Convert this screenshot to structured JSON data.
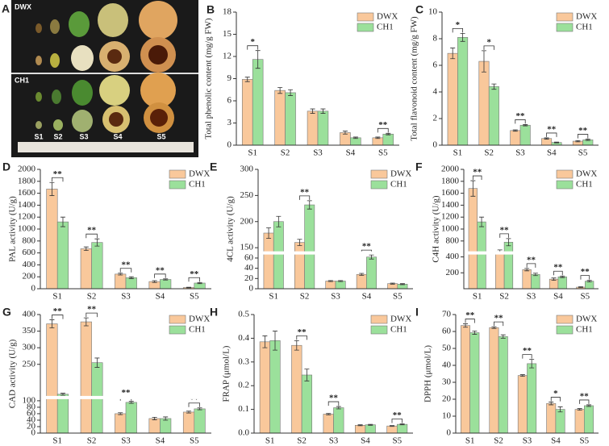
{
  "panel_a": {
    "label": "A",
    "rows": [
      "DWX",
      "CH1"
    ],
    "stages": [
      "S1",
      "S2",
      "S3",
      "S4",
      "S5"
    ]
  },
  "chart_data": [
    {
      "type": "bar",
      "panel": "B",
      "ylabel": "Total phenolic content (mg/g FW)",
      "categories": [
        "S1",
        "S2",
        "S3",
        "S4",
        "S5"
      ],
      "series": [
        {
          "name": "DWX",
          "color": "#f9c89b",
          "values": [
            8.9,
            7.4,
            4.6,
            1.7,
            1.0
          ],
          "errors": [
            0.3,
            0.4,
            0.3,
            0.2,
            0.1
          ]
        },
        {
          "name": "CH1",
          "color": "#9be09b",
          "values": [
            11.6,
            7.1,
            4.6,
            1.0,
            1.5
          ],
          "errors": [
            1.2,
            0.4,
            0.3,
            0.1,
            0.1
          ]
        }
      ],
      "annotations": [
        "*",
        null,
        null,
        null,
        "**"
      ],
      "ylim": [
        0,
        18
      ],
      "yticks": [
        0,
        3,
        6,
        9,
        12,
        15,
        18
      ],
      "legend": "upper right"
    },
    {
      "type": "bar",
      "panel": "C",
      "ylabel": "Total flavonoid content (mg/g FW)",
      "categories": [
        "S1",
        "S2",
        "S3",
        "S4",
        "S5"
      ],
      "series": [
        {
          "name": "DWX",
          "color": "#f9c89b",
          "values": [
            6.9,
            6.3,
            1.1,
            0.5,
            0.3
          ],
          "errors": [
            0.4,
            0.8,
            0.05,
            0.05,
            0.05
          ]
        },
        {
          "name": "CH1",
          "color": "#9be09b",
          "values": [
            8.1,
            4.4,
            1.5,
            0.2,
            0.4
          ],
          "errors": [
            0.3,
            0.2,
            0.05,
            0.03,
            0.05
          ]
        }
      ],
      "annotations": [
        "*",
        "*",
        "**",
        "**",
        "**"
      ],
      "ylim": [
        0,
        10
      ],
      "yticks": [
        0,
        2,
        4,
        6,
        8,
        10
      ],
      "legend": "upper right"
    },
    {
      "type": "bar",
      "panel": "D",
      "ylabel": "PAL activity (U/g)",
      "categories": [
        "S1",
        "S2",
        "S3",
        "S4",
        "S5"
      ],
      "series": [
        {
          "name": "DWX",
          "color": "#f9c89b",
          "values": [
            1670,
            670,
            245,
            120,
            20
          ],
          "errors": [
            110,
            30,
            15,
            15,
            5
          ]
        },
        {
          "name": "CH1",
          "color": "#9be09b",
          "values": [
            1120,
            775,
            185,
            155,
            95
          ],
          "errors": [
            80,
            60,
            15,
            10,
            10
          ]
        }
      ],
      "annotations": [
        "**",
        "**",
        "**",
        "**",
        "**"
      ],
      "ylim": [
        0,
        2000
      ],
      "yticks": [
        0,
        200,
        400,
        600,
        800,
        1000,
        1200,
        1400,
        1600,
        1800,
        2000
      ],
      "legend": "upper right"
    },
    {
      "type": "bar",
      "panel": "E",
      "ylabel": "4CL activity (U/g)",
      "categories": [
        "S1",
        "S2",
        "S3",
        "S4",
        "S5"
      ],
      "series": [
        {
          "name": "DWX",
          "color": "#f9c89b",
          "values": [
            178,
            160,
            15,
            28,
            10
          ],
          "errors": [
            10,
            6,
            1,
            2,
            1
          ]
        },
        {
          "name": "CH1",
          "color": "#9be09b",
          "values": [
            200,
            232,
            15,
            62,
            9
          ],
          "errors": [
            10,
            8,
            1,
            4,
            1
          ]
        }
      ],
      "annotations": [
        null,
        "**",
        null,
        "**",
        null
      ],
      "ylim": [
        0,
        300
      ],
      "ybreak": [
        70,
        140
      ],
      "yticks": [
        0,
        20,
        40,
        60,
        150,
        200,
        250,
        300
      ],
      "legend": "upper right"
    },
    {
      "type": "bar",
      "panel": "F",
      "ylabel": "C4H activity (U/g)",
      "categories": [
        "S1",
        "S2",
        "S3",
        "S4",
        "S5"
      ],
      "series": [
        {
          "name": "DWX",
          "color": "#f9c89b",
          "values": [
            1680,
            620,
            240,
            120,
            20
          ],
          "errors": [
            130,
            30,
            15,
            15,
            5
          ]
        },
        {
          "name": "CH1",
          "color": "#9be09b",
          "values": [
            1120,
            780,
            180,
            150,
            95
          ],
          "errors": [
            80,
            60,
            15,
            10,
            10
          ]
        }
      ],
      "annotations": [
        "**",
        "**",
        "**",
        "**",
        "**"
      ],
      "ylim": [
        0,
        2000
      ],
      "ybreak": [
        450,
        600
      ],
      "yticks": [
        200,
        400,
        800,
        1000,
        1200,
        1400,
        1600,
        1800,
        2000
      ],
      "legend": "upper right"
    },
    {
      "type": "bar",
      "panel": "G",
      "ylabel": "CAD activity (U/g)",
      "categories": [
        "S1",
        "S2",
        "S3",
        "S4",
        "S5"
      ],
      "series": [
        {
          "name": "DWX",
          "color": "#f9c89b",
          "values": [
            372,
            378,
            60,
            45,
            65
          ],
          "errors": [
            12,
            12,
            3,
            4,
            3
          ]
        },
        {
          "name": "CH1",
          "color": "#9be09b",
          "values": [
            160,
            255,
            95,
            45,
            75
          ],
          "errors": [
            3,
            14,
            3,
            5,
            3
          ]
        }
      ],
      "annotations": [
        "**",
        "**",
        "**",
        null,
        "**"
      ],
      "ylim": [
        0,
        400
      ],
      "ybreak": [
        110,
        150
      ],
      "yticks": [
        0,
        20,
        40,
        60,
        80,
        100,
        250,
        300,
        350,
        400
      ],
      "legend": "upper right"
    },
    {
      "type": "bar",
      "panel": "H",
      "ylabel": "FRAP (μmol/L)",
      "categories": [
        "S1",
        "S2",
        "S3",
        "S4",
        "S5"
      ],
      "series": [
        {
          "name": "DWX",
          "color": "#f9c89b",
          "values": [
            0.385,
            0.37,
            0.08,
            0.033,
            0.03
          ],
          "errors": [
            0.025,
            0.02,
            0.003,
            0.002,
            0.002
          ]
        },
        {
          "name": "CH1",
          "color": "#9be09b",
          "values": [
            0.39,
            0.245,
            0.107,
            0.035,
            0.037
          ],
          "errors": [
            0.04,
            0.025,
            0.005,
            0.002,
            0.002
          ]
        }
      ],
      "annotations": [
        null,
        "**",
        "**",
        null,
        "**"
      ],
      "ylim": [
        0,
        0.5
      ],
      "yticks": [
        {
          "value": 0,
          "label": "0.0"
        },
        0.1,
        0.2,
        0.3,
        0.4,
        0.5
      ],
      "legend": "upper right"
    },
    {
      "type": "bar",
      "panel": "I",
      "ylabel": "DPPH (μmol/L)",
      "categories": [
        "S1",
        "S2",
        "S3",
        "S4",
        "S5"
      ],
      "series": [
        {
          "name": "DWX",
          "color": "#f9c89b",
          "values": [
            63.5,
            62.3,
            34,
            17.5,
            14
          ],
          "errors": [
            1,
            0.5,
            0.5,
            0.8,
            0.5
          ]
        },
        {
          "name": "CH1",
          "color": "#9be09b",
          "values": [
            59.3,
            57,
            41,
            14,
            16.2
          ],
          "errors": [
            1,
            1,
            2.5,
            1.5,
            0.5
          ]
        }
      ],
      "annotations": [
        "**",
        "**",
        "**",
        "*",
        "**"
      ],
      "ylim": [
        0,
        70
      ],
      "yticks": [
        0,
        10,
        20,
        30,
        40,
        50,
        60,
        70
      ],
      "legend": "upper right"
    }
  ]
}
